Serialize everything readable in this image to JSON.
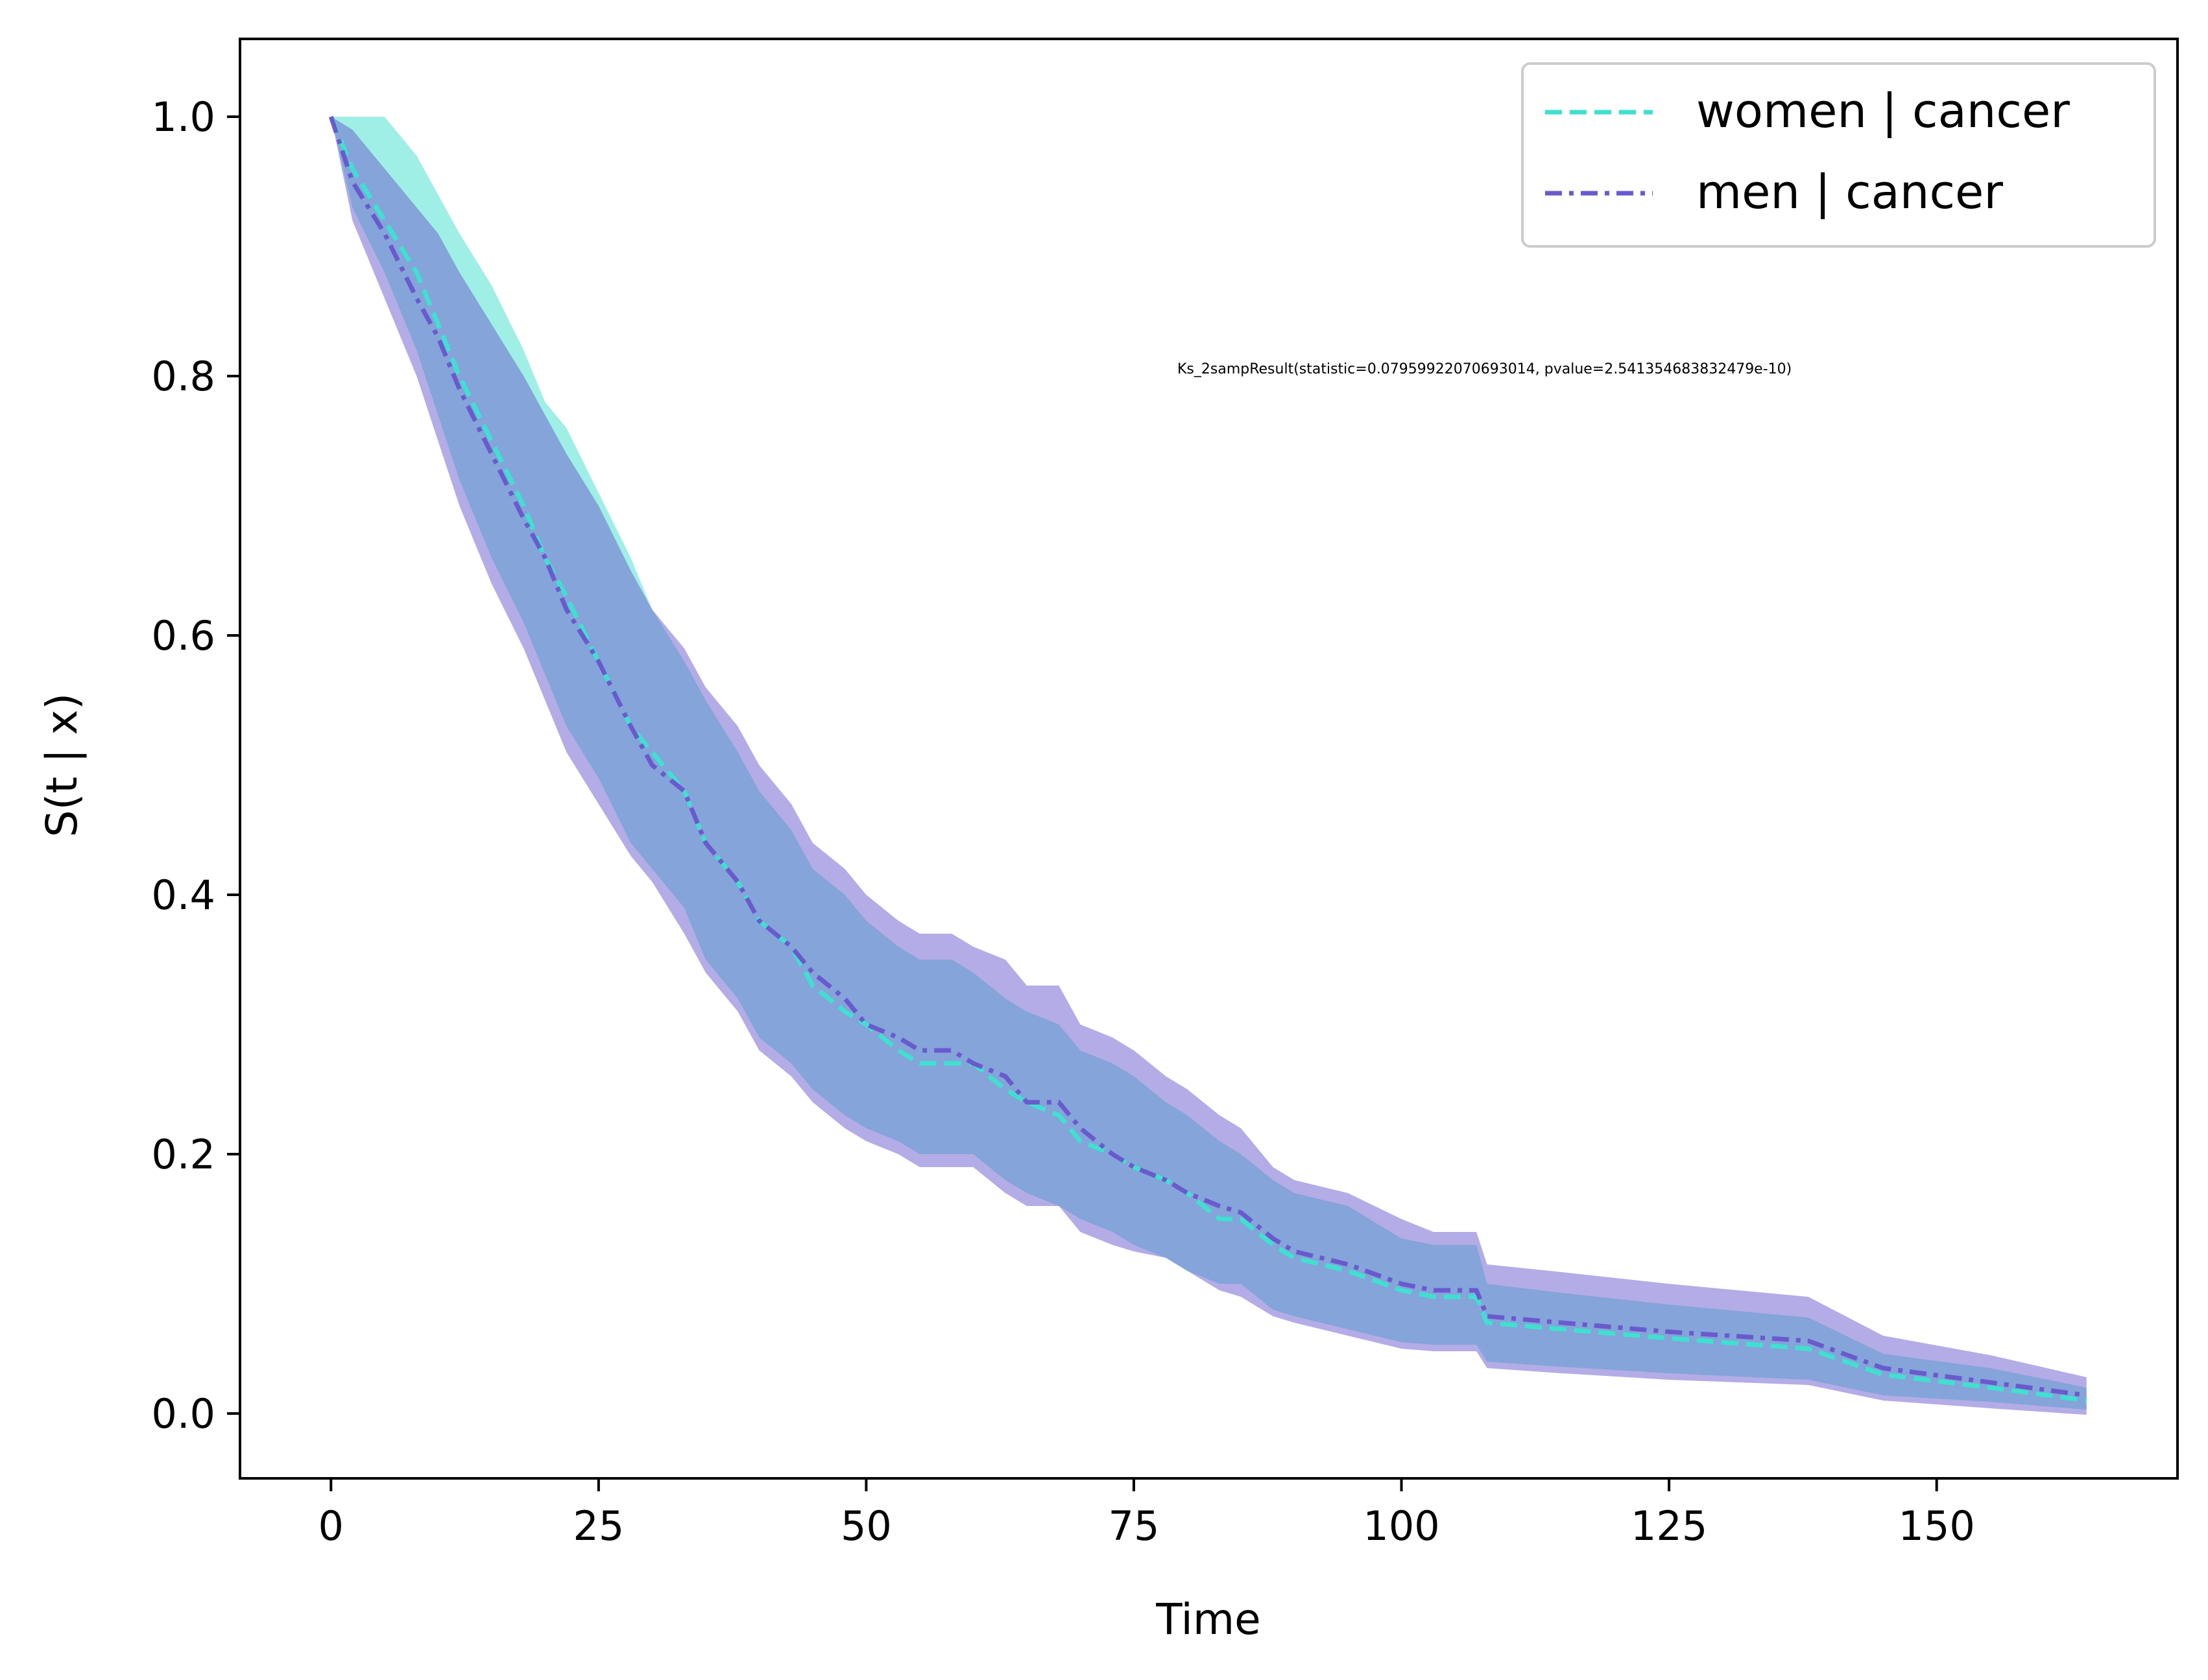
{
  "chart_data": {
    "type": "line",
    "title": "",
    "xlabel": "Time",
    "ylabel": "S(t | x)",
    "xlim": [
      -8.5,
      172.5
    ],
    "ylim": [
      -0.05,
      1.06
    ],
    "xticks": [
      0,
      25,
      50,
      75,
      100,
      125,
      150
    ],
    "yticks": [
      0.0,
      0.2,
      0.4,
      0.6,
      0.8,
      1.0
    ],
    "xtick_labels": [
      "0",
      "25",
      "50",
      "75",
      "100",
      "125",
      "150"
    ],
    "ytick_labels": [
      "0.0",
      "0.2",
      "0.4",
      "0.6",
      "0.8",
      "1.0"
    ],
    "grid": false,
    "legend_position": "top-right",
    "annotation": "Ks_2sampResult(statistic=0.07959922070693014, pvalue=2.541354683832479e-10)",
    "series": [
      {
        "name": "women | cancer",
        "color": "#40e0d0",
        "line_style": "dashed",
        "x": [
          0,
          2,
          5,
          8,
          10,
          12,
          15,
          18,
          20,
          22,
          25,
          28,
          30,
          33,
          35,
          38,
          40,
          43,
          45,
          48,
          50,
          53,
          55,
          58,
          60,
          63,
          65,
          68,
          70,
          73,
          75,
          78,
          80,
          83,
          85,
          88,
          90,
          95,
          100,
          103,
          105,
          107,
          108,
          115,
          125,
          138,
          145,
          155,
          164
        ],
        "y": [
          1.0,
          0.96,
          0.92,
          0.88,
          0.84,
          0.8,
          0.75,
          0.7,
          0.66,
          0.63,
          0.58,
          0.53,
          0.51,
          0.48,
          0.44,
          0.41,
          0.38,
          0.36,
          0.33,
          0.31,
          0.3,
          0.28,
          0.27,
          0.27,
          0.27,
          0.25,
          0.24,
          0.23,
          0.21,
          0.2,
          0.19,
          0.18,
          0.17,
          0.15,
          0.15,
          0.13,
          0.12,
          0.11,
          0.095,
          0.09,
          0.09,
          0.09,
          0.07,
          0.065,
          0.058,
          0.05,
          0.03,
          0.02,
          0.01
        ],
        "ci_lower": [
          1.0,
          0.93,
          0.88,
          0.82,
          0.77,
          0.72,
          0.66,
          0.61,
          0.57,
          0.53,
          0.49,
          0.44,
          0.42,
          0.39,
          0.35,
          0.32,
          0.29,
          0.27,
          0.25,
          0.23,
          0.22,
          0.21,
          0.2,
          0.2,
          0.2,
          0.18,
          0.17,
          0.16,
          0.15,
          0.14,
          0.13,
          0.12,
          0.11,
          0.1,
          0.1,
          0.08,
          0.075,
          0.065,
          0.055,
          0.053,
          0.053,
          0.053,
          0.04,
          0.036,
          0.031,
          0.026,
          0.014,
          0.009,
          0.003
        ],
        "ci_upper": [
          1.0,
          1.0,
          1.0,
          0.97,
          0.94,
          0.91,
          0.87,
          0.82,
          0.78,
          0.76,
          0.71,
          0.66,
          0.62,
          0.58,
          0.55,
          0.51,
          0.48,
          0.45,
          0.42,
          0.4,
          0.38,
          0.36,
          0.35,
          0.35,
          0.34,
          0.32,
          0.31,
          0.3,
          0.28,
          0.27,
          0.26,
          0.24,
          0.23,
          0.21,
          0.2,
          0.18,
          0.17,
          0.16,
          0.135,
          0.13,
          0.13,
          0.13,
          0.1,
          0.093,
          0.084,
          0.074,
          0.046,
          0.035,
          0.02
        ]
      },
      {
        "name": "men | cancer",
        "color": "#6a5acd",
        "line_style": "dashdot",
        "x": [
          0,
          2,
          5,
          8,
          10,
          12,
          15,
          18,
          20,
          22,
          25,
          28,
          30,
          33,
          35,
          38,
          40,
          43,
          45,
          48,
          50,
          53,
          55,
          58,
          60,
          63,
          65,
          68,
          70,
          73,
          75,
          78,
          80,
          83,
          85,
          88,
          90,
          95,
          100,
          103,
          105,
          107,
          108,
          115,
          125,
          138,
          145,
          155,
          164
        ],
        "y": [
          1.0,
          0.95,
          0.91,
          0.86,
          0.83,
          0.79,
          0.74,
          0.69,
          0.66,
          0.62,
          0.58,
          0.53,
          0.5,
          0.48,
          0.44,
          0.41,
          0.38,
          0.36,
          0.34,
          0.32,
          0.3,
          0.29,
          0.28,
          0.28,
          0.27,
          0.26,
          0.24,
          0.24,
          0.22,
          0.2,
          0.19,
          0.18,
          0.17,
          0.16,
          0.155,
          0.135,
          0.125,
          0.115,
          0.1,
          0.095,
          0.095,
          0.095,
          0.075,
          0.07,
          0.063,
          0.056,
          0.035,
          0.024,
          0.014
        ],
        "ci_lower": [
          1.0,
          0.92,
          0.86,
          0.8,
          0.75,
          0.7,
          0.64,
          0.59,
          0.55,
          0.51,
          0.47,
          0.43,
          0.41,
          0.37,
          0.34,
          0.31,
          0.28,
          0.26,
          0.24,
          0.22,
          0.21,
          0.2,
          0.19,
          0.19,
          0.19,
          0.17,
          0.16,
          0.16,
          0.14,
          0.13,
          0.125,
          0.12,
          0.11,
          0.095,
          0.09,
          0.075,
          0.07,
          0.06,
          0.05,
          0.048,
          0.048,
          0.048,
          0.035,
          0.031,
          0.026,
          0.022,
          0.01,
          0.004,
          -0.001
        ],
        "ci_upper": [
          1.0,
          0.99,
          0.96,
          0.93,
          0.91,
          0.88,
          0.84,
          0.8,
          0.77,
          0.74,
          0.7,
          0.65,
          0.62,
          0.59,
          0.56,
          0.53,
          0.5,
          0.47,
          0.44,
          0.42,
          0.4,
          0.38,
          0.37,
          0.37,
          0.36,
          0.35,
          0.33,
          0.33,
          0.3,
          0.29,
          0.28,
          0.26,
          0.25,
          0.23,
          0.22,
          0.19,
          0.18,
          0.17,
          0.15,
          0.14,
          0.14,
          0.14,
          0.115,
          0.109,
          0.1,
          0.09,
          0.06,
          0.045,
          0.028
        ]
      }
    ]
  }
}
